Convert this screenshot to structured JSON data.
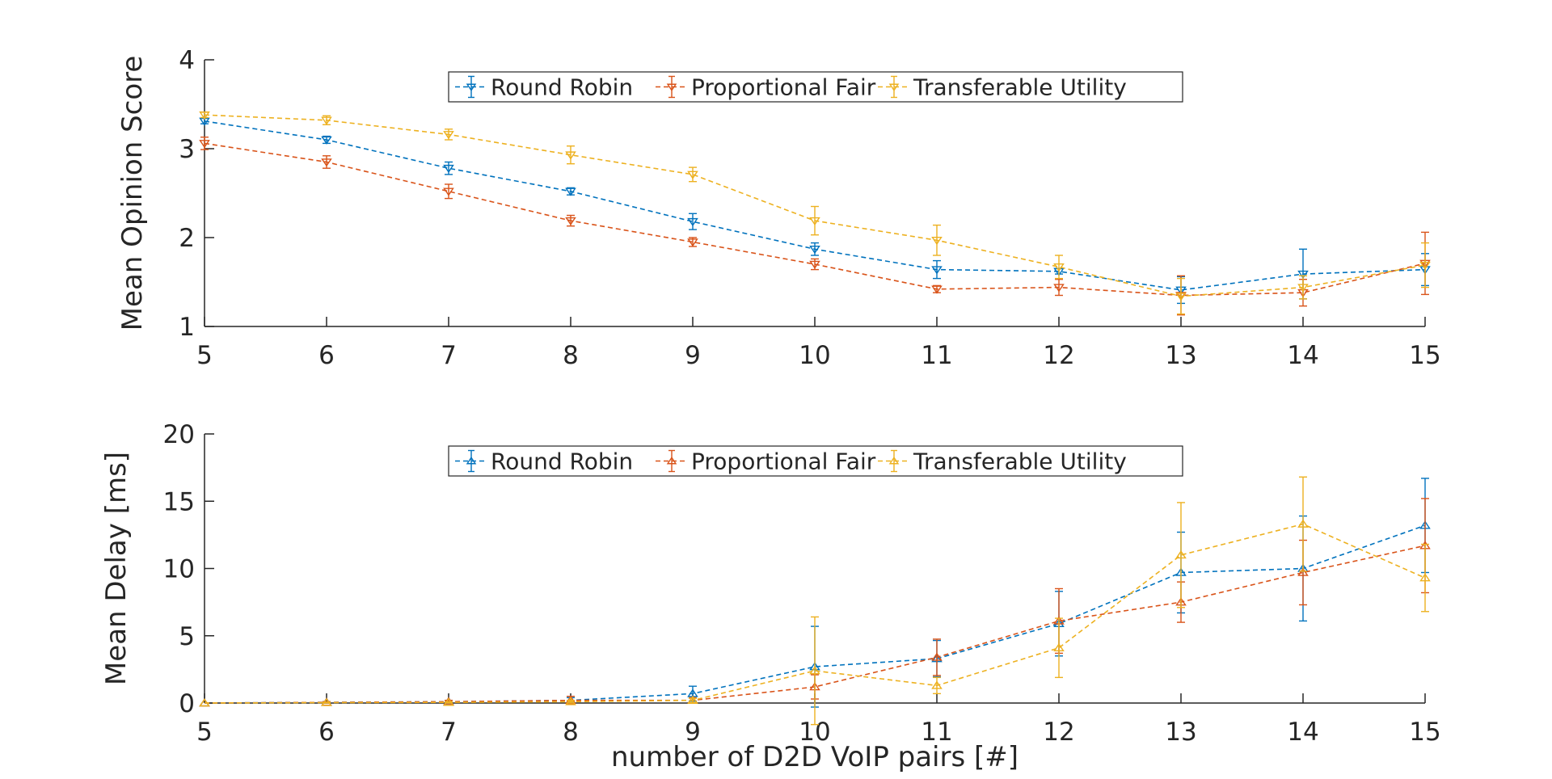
{
  "chart_data": [
    {
      "type": "line",
      "title": "",
      "xlabel": "",
      "ylabel": "Mean Opinion Score",
      "x": [
        5,
        6,
        7,
        8,
        9,
        10,
        11,
        12,
        13,
        14,
        15
      ],
      "xlim": [
        5,
        15
      ],
      "ylim": [
        1,
        4
      ],
      "xticks": [
        5,
        6,
        7,
        8,
        9,
        10,
        11,
        12,
        13,
        14,
        15
      ],
      "yticks": [
        1,
        2,
        3,
        4
      ],
      "marker": "triangle-down",
      "legend_position": "top-center",
      "grid": false,
      "series": [
        {
          "name": "Round Robin",
          "color": "#0072BD",
          "values": [
            3.31,
            3.1,
            2.78,
            2.52,
            2.18,
            1.87,
            1.64,
            1.62,
            1.41,
            1.59,
            1.64
          ],
          "error": [
            0.03,
            0.04,
            0.07,
            0.04,
            0.09,
            0.07,
            0.1,
            0.03,
            0.15,
            0.28,
            0.18
          ]
        },
        {
          "name": "Proportional Fair",
          "color": "#D95319",
          "values": [
            3.06,
            2.85,
            2.52,
            2.19,
            1.95,
            1.7,
            1.42,
            1.44,
            1.35,
            1.38,
            1.71
          ],
          "error": [
            0.07,
            0.07,
            0.08,
            0.06,
            0.05,
            0.06,
            0.04,
            0.09,
            0.22,
            0.15,
            0.35
          ]
        },
        {
          "name": "Transferable Utility",
          "color": "#EDB120",
          "values": [
            3.38,
            3.32,
            3.16,
            2.93,
            2.71,
            2.19,
            1.97,
            1.67,
            1.34,
            1.44,
            1.69
          ],
          "error": [
            0.03,
            0.05,
            0.06,
            0.1,
            0.08,
            0.16,
            0.17,
            0.13,
            0.2,
            0.13,
            0.25
          ]
        }
      ]
    },
    {
      "type": "line",
      "title": "",
      "xlabel": "number of D2D VoIP pairs [#]",
      "ylabel": "Mean Delay [ms]",
      "x": [
        5,
        6,
        7,
        8,
        9,
        10,
        11,
        12,
        13,
        14,
        15
      ],
      "xlim": [
        5,
        15
      ],
      "ylim": [
        0,
        20
      ],
      "xticks": [
        5,
        6,
        7,
        8,
        9,
        10,
        11,
        12,
        13,
        14,
        15
      ],
      "yticks": [
        0,
        5,
        10,
        15,
        20
      ],
      "marker": "triangle-up",
      "legend_position": "top-center",
      "grid": false,
      "series": [
        {
          "name": "Round Robin",
          "color": "#0072BD",
          "values": [
            0.0,
            0.05,
            0.1,
            0.2,
            0.7,
            2.7,
            3.3,
            5.9,
            9.7,
            10.0,
            13.2
          ],
          "error": [
            0.0,
            0.05,
            0.1,
            0.2,
            0.55,
            3.0,
            1.35,
            2.4,
            3.0,
            3.9,
            3.5
          ]
        },
        {
          "name": "Proportional Fair",
          "color": "#D95319",
          "values": [
            0.0,
            0.05,
            0.1,
            0.2,
            0.2,
            1.2,
            3.4,
            6.1,
            7.5,
            9.7,
            11.7
          ],
          "error": [
            0.0,
            0.05,
            0.1,
            0.3,
            0.2,
            0.9,
            1.35,
            2.4,
            1.5,
            2.4,
            3.5
          ]
        },
        {
          "name": "Transferable Utility",
          "color": "#EDB120",
          "values": [
            0.0,
            0.03,
            0.05,
            0.1,
            0.2,
            2.4,
            1.3,
            4.1,
            11.0,
            13.3,
            9.3
          ],
          "error": [
            0.0,
            0.03,
            0.05,
            0.1,
            0.15,
            4.0,
            0.6,
            2.2,
            3.9,
            3.5,
            2.5
          ]
        }
      ]
    }
  ]
}
